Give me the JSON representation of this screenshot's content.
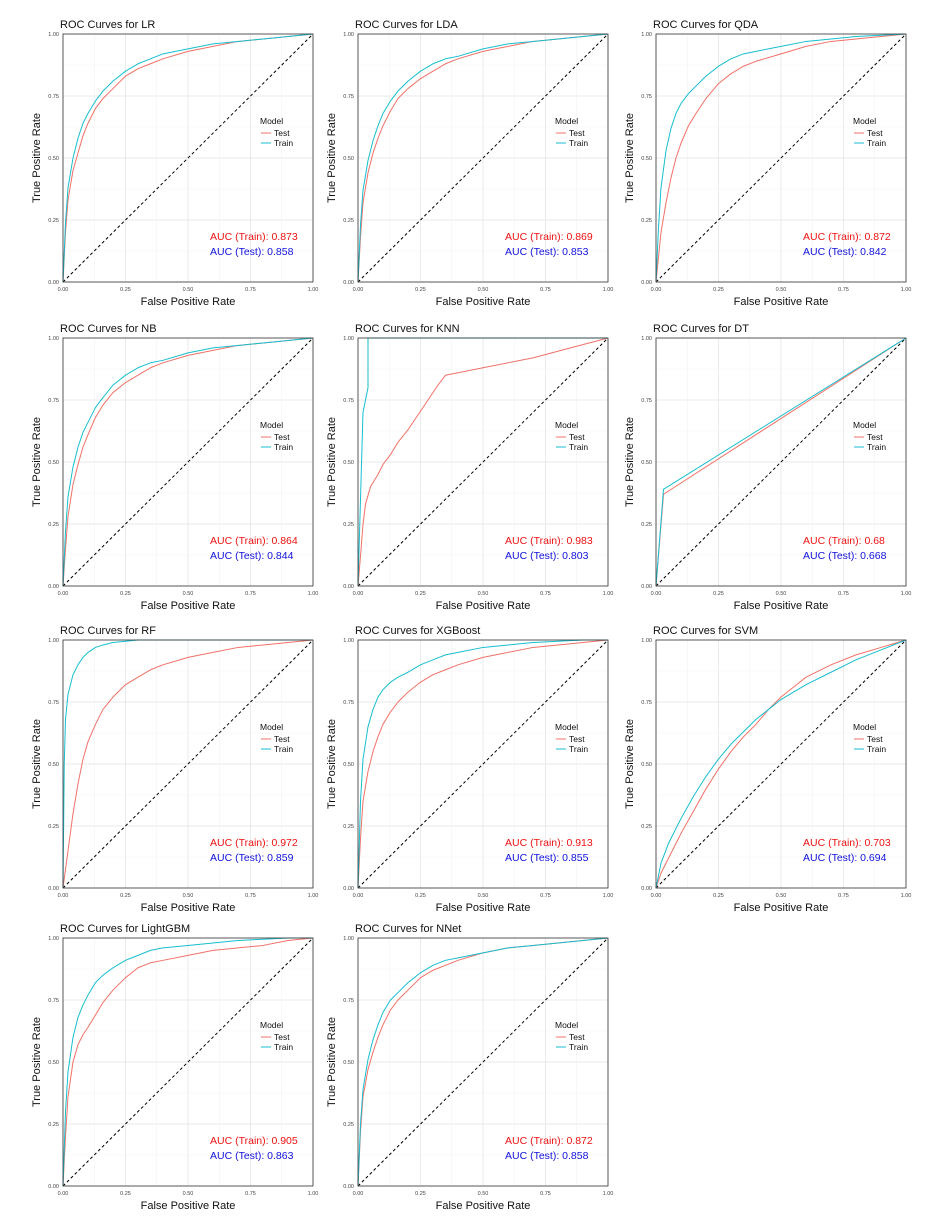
{
  "colors": {
    "train": "#17becf",
    "test": "#f07168",
    "auc_train": "#ee1111",
    "auc_test": "#1111dd",
    "diagonal": "#000000"
  },
  "common": {
    "xlabel": "False Positive Rate",
    "ylabel": "True Positive Rate",
    "legend_title": "Model",
    "legend_test": "Test",
    "legend_train": "Train",
    "ticks": [
      "0.00",
      "0.25",
      "0.50",
      "0.75",
      "1.00"
    ]
  },
  "chart_data": [
    {
      "type": "line",
      "title": "ROC Curves for LR",
      "auc_train_label": "AUC (Train): 0.873",
      "auc_test_label": "AUC (Test): 0.858",
      "xlim": [
        0,
        1
      ],
      "ylim": [
        0,
        1
      ],
      "legend": "right",
      "series": [
        {
          "name": "Test",
          "x": [
            0,
            0.01,
            0.02,
            0.04,
            0.06,
            0.08,
            0.1,
            0.13,
            0.16,
            0.2,
            0.25,
            0.3,
            0.35,
            0.4,
            0.5,
            0.6,
            0.7,
            0.8,
            0.9,
            1.0
          ],
          "y": [
            0,
            0.2,
            0.33,
            0.45,
            0.52,
            0.59,
            0.64,
            0.7,
            0.74,
            0.78,
            0.83,
            0.86,
            0.88,
            0.9,
            0.93,
            0.95,
            0.97,
            0.98,
            0.99,
            1.0
          ]
        },
        {
          "name": "Train",
          "x": [
            0,
            0.01,
            0.02,
            0.04,
            0.06,
            0.08,
            0.1,
            0.13,
            0.16,
            0.2,
            0.25,
            0.3,
            0.35,
            0.4,
            0.5,
            0.6,
            0.7,
            0.8,
            0.9,
            1.0
          ],
          "y": [
            0,
            0.24,
            0.38,
            0.5,
            0.58,
            0.64,
            0.68,
            0.73,
            0.77,
            0.81,
            0.85,
            0.88,
            0.9,
            0.92,
            0.94,
            0.96,
            0.97,
            0.98,
            0.99,
            1.0
          ]
        }
      ]
    },
    {
      "type": "line",
      "title": "ROC Curves for LDA",
      "auc_train_label": "AUC (Train): 0.869",
      "auc_test_label": "AUC (Test): 0.853",
      "xlim": [
        0,
        1
      ],
      "ylim": [
        0,
        1
      ],
      "legend": "right",
      "series": [
        {
          "name": "Test",
          "x": [
            0,
            0.01,
            0.02,
            0.04,
            0.06,
            0.08,
            0.1,
            0.13,
            0.16,
            0.2,
            0.25,
            0.3,
            0.35,
            0.4,
            0.5,
            0.6,
            0.7,
            0.8,
            0.9,
            1.0
          ],
          "y": [
            0,
            0.18,
            0.32,
            0.44,
            0.52,
            0.58,
            0.63,
            0.69,
            0.74,
            0.78,
            0.82,
            0.85,
            0.88,
            0.9,
            0.93,
            0.95,
            0.97,
            0.98,
            0.99,
            1.0
          ]
        },
        {
          "name": "Train",
          "x": [
            0,
            0.01,
            0.02,
            0.04,
            0.06,
            0.08,
            0.1,
            0.13,
            0.16,
            0.2,
            0.25,
            0.3,
            0.35,
            0.4,
            0.5,
            0.6,
            0.7,
            0.8,
            0.9,
            1.0
          ],
          "y": [
            0,
            0.23,
            0.37,
            0.49,
            0.57,
            0.63,
            0.68,
            0.73,
            0.77,
            0.81,
            0.85,
            0.88,
            0.9,
            0.91,
            0.94,
            0.96,
            0.97,
            0.98,
            0.99,
            1.0
          ]
        }
      ]
    },
    {
      "type": "line",
      "title": "ROC Curves for QDA",
      "auc_train_label": "AUC (Train): 0.872",
      "auc_test_label": "AUC (Test): 0.842",
      "xlim": [
        0,
        1
      ],
      "ylim": [
        0,
        1
      ],
      "legend": "right",
      "series": [
        {
          "name": "Test",
          "x": [
            0,
            0.01,
            0.02,
            0.04,
            0.06,
            0.08,
            0.1,
            0.13,
            0.16,
            0.2,
            0.25,
            0.3,
            0.35,
            0.4,
            0.5,
            0.6,
            0.7,
            0.8,
            0.9,
            1.0
          ],
          "y": [
            0,
            0.1,
            0.2,
            0.32,
            0.42,
            0.5,
            0.56,
            0.63,
            0.68,
            0.74,
            0.8,
            0.84,
            0.87,
            0.89,
            0.92,
            0.95,
            0.97,
            0.98,
            0.99,
            1.0
          ]
        },
        {
          "name": "Train",
          "x": [
            0,
            0.01,
            0.02,
            0.04,
            0.06,
            0.08,
            0.1,
            0.13,
            0.16,
            0.2,
            0.25,
            0.3,
            0.35,
            0.4,
            0.5,
            0.6,
            0.7,
            0.8,
            0.9,
            1.0
          ],
          "y": [
            0,
            0.22,
            0.38,
            0.53,
            0.62,
            0.68,
            0.72,
            0.76,
            0.79,
            0.83,
            0.87,
            0.9,
            0.92,
            0.93,
            0.95,
            0.97,
            0.98,
            0.99,
            0.995,
            1.0
          ]
        }
      ]
    },
    {
      "type": "line",
      "title": "ROC Curves for NB",
      "auc_train_label": "AUC (Train): 0.864",
      "auc_test_label": "AUC (Test): 0.844",
      "xlim": [
        0,
        1
      ],
      "ylim": [
        0,
        1
      ],
      "legend": "right",
      "series": [
        {
          "name": "Test",
          "x": [
            0,
            0.01,
            0.02,
            0.04,
            0.06,
            0.08,
            0.1,
            0.13,
            0.16,
            0.2,
            0.25,
            0.3,
            0.35,
            0.4,
            0.5,
            0.6,
            0.7,
            0.8,
            0.9,
            1.0
          ],
          "y": [
            0,
            0.15,
            0.28,
            0.41,
            0.49,
            0.56,
            0.61,
            0.68,
            0.73,
            0.78,
            0.82,
            0.85,
            0.88,
            0.9,
            0.93,
            0.95,
            0.97,
            0.98,
            0.99,
            1.0
          ]
        },
        {
          "name": "Train",
          "x": [
            0,
            0.01,
            0.02,
            0.04,
            0.06,
            0.08,
            0.1,
            0.13,
            0.16,
            0.2,
            0.25,
            0.3,
            0.35,
            0.4,
            0.5,
            0.6,
            0.7,
            0.8,
            0.9,
            1.0
          ],
          "y": [
            0,
            0.22,
            0.36,
            0.48,
            0.56,
            0.62,
            0.66,
            0.72,
            0.76,
            0.81,
            0.85,
            0.88,
            0.9,
            0.91,
            0.94,
            0.96,
            0.97,
            0.98,
            0.99,
            1.0
          ]
        }
      ]
    },
    {
      "type": "line",
      "title": "ROC Curves for KNN",
      "auc_train_label": "AUC (Train): 0.983",
      "auc_test_label": "AUC (Test): 0.803",
      "xlim": [
        0,
        1
      ],
      "ylim": [
        0,
        1
      ],
      "legend": "right",
      "series": [
        {
          "name": "Test",
          "x": [
            0,
            0.01,
            0.02,
            0.03,
            0.05,
            0.08,
            0.1,
            0.13,
            0.16,
            0.2,
            0.24,
            0.28,
            0.32,
            0.35,
            0.5,
            0.7,
            0.85,
            1.0
          ],
          "y": [
            0,
            0.12,
            0.25,
            0.33,
            0.4,
            0.45,
            0.49,
            0.53,
            0.58,
            0.63,
            0.69,
            0.75,
            0.81,
            0.85,
            0.88,
            0.92,
            0.96,
            1.0
          ]
        },
        {
          "name": "Train",
          "x": [
            0,
            0.02,
            0.04,
            0.04,
            0.5,
            1.0
          ],
          "y": [
            0,
            0.7,
            0.8,
            1.0,
            1.0,
            1.0
          ]
        }
      ]
    },
    {
      "type": "line",
      "title": "ROC Curves for DT",
      "auc_train_label": "AUC (Train): 0.68",
      "auc_test_label": "AUC (Test): 0.668",
      "xlim": [
        0,
        1
      ],
      "ylim": [
        0,
        1
      ],
      "legend": "right",
      "series": [
        {
          "name": "Test",
          "x": [
            0,
            0.03,
            1.0
          ],
          "y": [
            0,
            0.37,
            1.0
          ]
        },
        {
          "name": "Train",
          "x": [
            0,
            0.03,
            1.0
          ],
          "y": [
            0,
            0.39,
            1.0
          ]
        }
      ]
    },
    {
      "type": "line",
      "title": "ROC Curves for RF",
      "auc_train_label": "AUC (Train): 0.972",
      "auc_test_label": "AUC (Test): 0.859",
      "xlim": [
        0,
        1
      ],
      "ylim": [
        0,
        1
      ],
      "legend": "right",
      "series": [
        {
          "name": "Test",
          "x": [
            0,
            0.02,
            0.04,
            0.06,
            0.08,
            0.1,
            0.13,
            0.16,
            0.2,
            0.25,
            0.3,
            0.35,
            0.4,
            0.5,
            0.6,
            0.7,
            0.8,
            0.9,
            1.0
          ],
          "y": [
            0,
            0.15,
            0.3,
            0.42,
            0.52,
            0.59,
            0.66,
            0.72,
            0.77,
            0.82,
            0.85,
            0.88,
            0.9,
            0.93,
            0.95,
            0.97,
            0.98,
            0.99,
            1.0
          ]
        },
        {
          "name": "Train",
          "x": [
            0,
            0.005,
            0.01,
            0.02,
            0.04,
            0.06,
            0.08,
            0.1,
            0.13,
            0.16,
            0.2,
            0.25,
            0.3,
            0.4,
            0.6,
            0.8,
            1.0
          ],
          "y": [
            0,
            0.5,
            0.68,
            0.78,
            0.86,
            0.9,
            0.93,
            0.95,
            0.97,
            0.98,
            0.99,
            0.995,
            1.0,
            1.0,
            1.0,
            1.0,
            1.0
          ]
        }
      ]
    },
    {
      "type": "line",
      "title": "ROC Curves for XGBoost",
      "auc_train_label": "AUC (Train): 0.913",
      "auc_test_label": "AUC (Test): 0.855",
      "xlim": [
        0,
        1
      ],
      "ylim": [
        0,
        1
      ],
      "legend": "right",
      "series": [
        {
          "name": "Test",
          "x": [
            0,
            0.01,
            0.02,
            0.04,
            0.06,
            0.08,
            0.1,
            0.13,
            0.16,
            0.2,
            0.25,
            0.3,
            0.35,
            0.4,
            0.5,
            0.6,
            0.7,
            0.8,
            0.9,
            1.0
          ],
          "y": [
            0,
            0.2,
            0.35,
            0.47,
            0.55,
            0.61,
            0.66,
            0.71,
            0.75,
            0.79,
            0.83,
            0.86,
            0.88,
            0.9,
            0.93,
            0.95,
            0.97,
            0.98,
            0.99,
            1.0
          ]
        },
        {
          "name": "Train",
          "x": [
            0,
            0.01,
            0.02,
            0.04,
            0.06,
            0.08,
            0.1,
            0.13,
            0.16,
            0.2,
            0.25,
            0.3,
            0.35,
            0.4,
            0.5,
            0.6,
            0.7,
            0.8,
            0.9,
            1.0
          ],
          "y": [
            0,
            0.35,
            0.52,
            0.65,
            0.72,
            0.77,
            0.8,
            0.83,
            0.85,
            0.87,
            0.9,
            0.92,
            0.94,
            0.95,
            0.97,
            0.98,
            0.99,
            0.995,
            1.0,
            1.0
          ]
        }
      ]
    },
    {
      "type": "line",
      "title": "ROC Curves for SVM",
      "auc_train_label": "AUC (Train): 0.703",
      "auc_test_label": "AUC (Test): 0.694",
      "xlim": [
        0,
        1
      ],
      "ylim": [
        0,
        1
      ],
      "legend": "right",
      "series": [
        {
          "name": "Test",
          "x": [
            0,
            0.02,
            0.05,
            0.08,
            0.1,
            0.15,
            0.2,
            0.25,
            0.3,
            0.35,
            0.4,
            0.45,
            0.5,
            0.55,
            0.6,
            0.7,
            0.8,
            0.9,
            1.0
          ],
          "y": [
            0,
            0.06,
            0.12,
            0.18,
            0.22,
            0.31,
            0.4,
            0.48,
            0.55,
            0.61,
            0.66,
            0.72,
            0.77,
            0.81,
            0.85,
            0.9,
            0.94,
            0.97,
            1.0
          ]
        },
        {
          "name": "Train",
          "x": [
            0,
            0.02,
            0.05,
            0.08,
            0.1,
            0.15,
            0.2,
            0.25,
            0.3,
            0.35,
            0.4,
            0.45,
            0.5,
            0.55,
            0.6,
            0.7,
            0.8,
            0.9,
            1.0
          ],
          "y": [
            0,
            0.1,
            0.18,
            0.24,
            0.28,
            0.37,
            0.45,
            0.52,
            0.58,
            0.63,
            0.68,
            0.72,
            0.76,
            0.79,
            0.82,
            0.87,
            0.92,
            0.96,
            1.0
          ]
        }
      ]
    },
    {
      "type": "line",
      "title": "ROC Curves for LightGBM",
      "auc_train_label": "AUC (Train): 0.905",
      "auc_test_label": "AUC (Test): 0.863",
      "xlim": [
        0,
        1
      ],
      "ylim": [
        0,
        1
      ],
      "legend": "right",
      "series": [
        {
          "name": "Test",
          "x": [
            0,
            0.01,
            0.02,
            0.04,
            0.06,
            0.08,
            0.1,
            0.13,
            0.16,
            0.2,
            0.25,
            0.3,
            0.35,
            0.4,
            0.5,
            0.6,
            0.7,
            0.8,
            0.9,
            1.0
          ],
          "y": [
            0,
            0.2,
            0.36,
            0.5,
            0.57,
            0.61,
            0.64,
            0.69,
            0.74,
            0.79,
            0.84,
            0.88,
            0.9,
            0.91,
            0.93,
            0.95,
            0.96,
            0.97,
            0.99,
            1.0
          ]
        },
        {
          "name": "Train",
          "x": [
            0,
            0.01,
            0.02,
            0.04,
            0.06,
            0.08,
            0.1,
            0.13,
            0.16,
            0.2,
            0.25,
            0.3,
            0.35,
            0.4,
            0.5,
            0.6,
            0.7,
            0.8,
            0.9,
            1.0
          ],
          "y": [
            0,
            0.3,
            0.46,
            0.6,
            0.68,
            0.73,
            0.77,
            0.82,
            0.85,
            0.88,
            0.91,
            0.93,
            0.95,
            0.96,
            0.97,
            0.98,
            0.99,
            0.995,
            1.0,
            1.0
          ]
        }
      ]
    },
    {
      "type": "line",
      "title": "ROC Curves for NNet",
      "auc_train_label": "AUC (Train): 0.872",
      "auc_test_label": "AUC (Test): 0.858",
      "xlim": [
        0,
        1
      ],
      "ylim": [
        0,
        1
      ],
      "legend": "right",
      "series": [
        {
          "name": "Test",
          "x": [
            0,
            0.01,
            0.02,
            0.04,
            0.06,
            0.08,
            0.1,
            0.13,
            0.16,
            0.2,
            0.25,
            0.3,
            0.35,
            0.4,
            0.5,
            0.6,
            0.7,
            0.8,
            0.9,
            1.0
          ],
          "y": [
            0,
            0.22,
            0.36,
            0.47,
            0.54,
            0.6,
            0.65,
            0.71,
            0.75,
            0.79,
            0.84,
            0.87,
            0.89,
            0.91,
            0.94,
            0.96,
            0.97,
            0.98,
            0.99,
            1.0
          ]
        },
        {
          "name": "Train",
          "x": [
            0,
            0.01,
            0.02,
            0.04,
            0.06,
            0.08,
            0.1,
            0.13,
            0.16,
            0.2,
            0.25,
            0.3,
            0.35,
            0.4,
            0.5,
            0.6,
            0.7,
            0.8,
            0.9,
            1.0
          ],
          "y": [
            0,
            0.25,
            0.39,
            0.51,
            0.59,
            0.65,
            0.7,
            0.75,
            0.78,
            0.82,
            0.86,
            0.89,
            0.91,
            0.92,
            0.94,
            0.96,
            0.97,
            0.98,
            0.99,
            1.0
          ]
        }
      ]
    }
  ]
}
